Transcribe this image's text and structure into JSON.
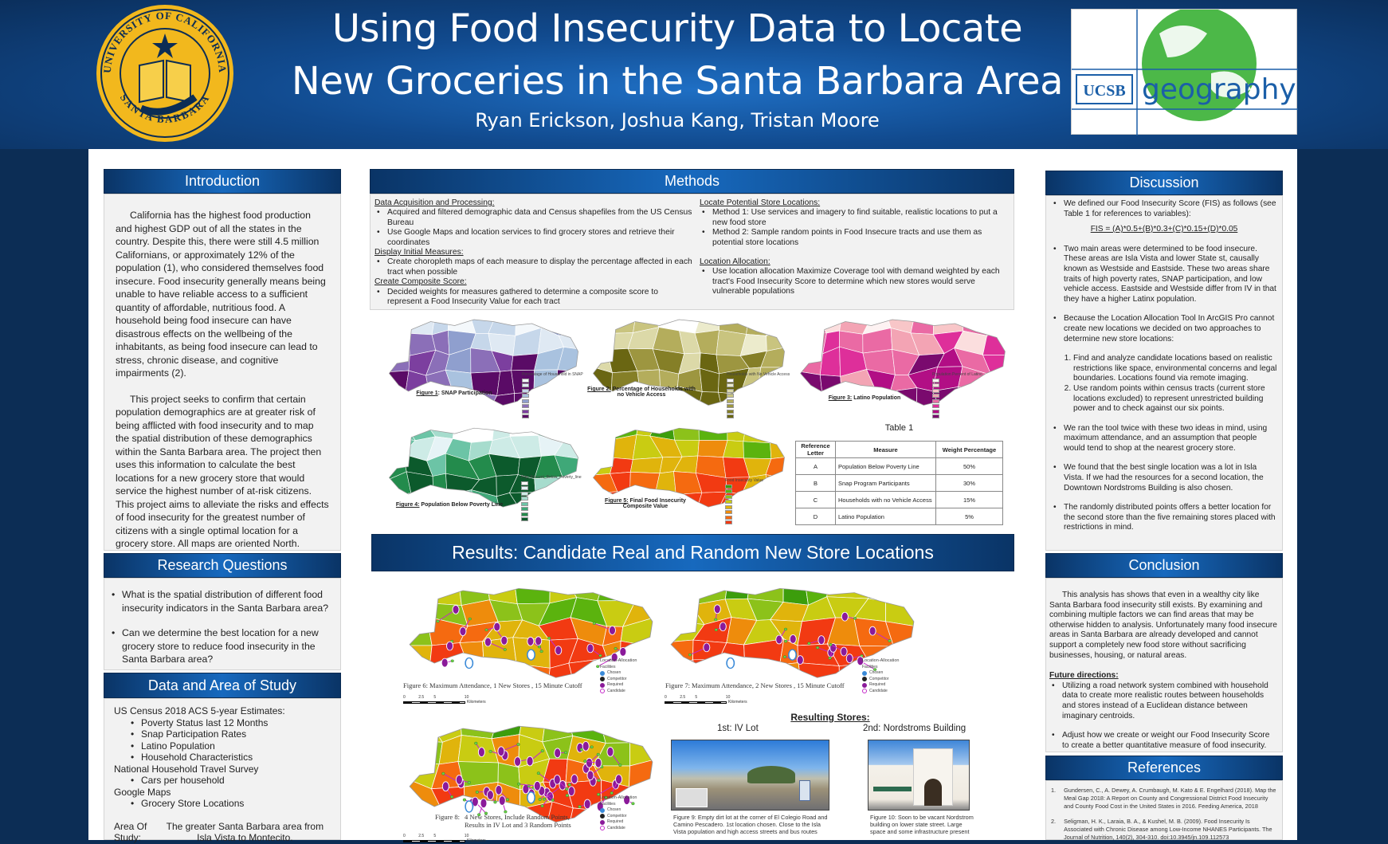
{
  "header": {
    "title_line1": "Using Food Insecurity Data to Locate",
    "title_line2": "New Groceries in the Santa Barbara Area",
    "authors": "Ryan Erickson, Joshua Kang, Tristan Moore",
    "seal_text_top": "UNIVERSITY OF CALIFORNIA",
    "seal_text_bottom": "SANTA BARBARA",
    "seal_motto": "LET THERE BE LIGHT",
    "logo_ucsb": "UCSB",
    "logo_geography": "geography"
  },
  "colors": {
    "header_blue": "#1769be",
    "navy": "#0a3466",
    "panel_gray": "#f2f2f2",
    "seal_gold": "#f2b81d",
    "logo_green": "#4cb848",
    "logo_blue": "#1b5fa8",
    "point_purple": "#8b1a9a"
  },
  "introduction": {
    "heading": "Introduction",
    "p1": "California has the highest food production and highest GDP out of all the states in the country. Despite this, there were still 4.5 million Californians, or approximately 12% of the population (1), who considered themselves food insecure. Food insecurity generally means being unable to have reliable access to a sufficient quantity of affordable, nutritious food. A household being food insecure can have disastrous effects on the wellbeing of the inhabitants, as being food insecure can lead to stress, chronic disease, and cognitive impairments (2).",
    "p2": "This project seeks to confirm that certain population demographics are at greater risk of being afflicted with food insecurity and to map the spatial distribution of these demographics within the Santa Barbara area. The project then uses this information to calculate the best locations for a new grocery store that would service the highest number of at-risk citizens. This project aims to alleviate the risks and effects of food insecurity for the greatest number of citizens with a single optimal location for a grocery store. All maps are oriented North."
  },
  "research_questions": {
    "heading": "Research Questions",
    "items": [
      "What is the spatial distribution of different food insecurity indicators in the Santa Barbara area?",
      "Can we determine the best location for a new grocery store to reduce food insecurity in the Santa Barbara area?"
    ]
  },
  "data_area": {
    "heading": "Data and Area of Study",
    "source1": "US Census 2018 ACS 5-year Estimates:",
    "source1_items": [
      "Poverty Status last 12 Months",
      "Snap Participation Rates",
      "Latino Population",
      "Household Characteristics"
    ],
    "source2": "National Household Travel Survey",
    "source2_items": [
      "Cars per household"
    ],
    "source3": "Google Maps",
    "source3_items": [
      "Grocery Store Locations"
    ],
    "area_label": "Area Of Study:",
    "area_text": "The greater Santa Barbara area from Isla Vista to Montecito."
  },
  "methods": {
    "heading": "Methods",
    "left": [
      {
        "title": "Data Acquisition and Processing:",
        "items": [
          "Acquired and filtered demographic data and Census shapefiles from the US Census Bureau",
          "Use Google Maps and location services to find grocery stores and retrieve their coordinates"
        ]
      },
      {
        "title": "Display Initial Measures:",
        "items": [
          "Create choropleth maps of each measure to display the percentage affected in each tract when possible"
        ]
      },
      {
        "title": "Create Composite Score:",
        "items": [
          "Decided weights for measures gathered to determine a composite score to represent a Food Insecurity Value for each tract"
        ]
      }
    ],
    "right": [
      {
        "title": "Locate Potential Store Locations:",
        "items": [
          "Method 1: Use services and imagery to find suitable, realistic locations to put a new food store",
          "Method 2: Sample random points in Food Insecure tracts and use them as potential store locations"
        ]
      },
      {
        "title": "Location Allocation:",
        "items": [
          "Use location allocation Maximize Coverage tool with demand weighted by each tract's Food Insecurity Score to determine which new stores would serve vulnerable populations"
        ]
      }
    ]
  },
  "figures": [
    {
      "label": "Figure 1",
      "text": ": SNAP Participation",
      "legend_title": "Percentage of Household in SNAP",
      "palette": [
        "#f4f8fb",
        "#dfe9f3",
        "#c6d7ea",
        "#a9c2df",
        "#8f9fce",
        "#8b6fb8",
        "#7c3f9f",
        "#5a0b66"
      ]
    },
    {
      "label": "Figure 2:",
      "text": " Percentage of Households with no Vehicle Access",
      "legend_title": "Households with No Vehicle Access",
      "palette": [
        "#ffffff",
        "#ecebcc",
        "#dcd9a8",
        "#c9c47f",
        "#b4ad5c",
        "#9d9640",
        "#857f27",
        "#6a6612"
      ]
    },
    {
      "label": "Figure 3:",
      "text": " Latino Population",
      "legend_title": "Population Percent of Latino",
      "palette": [
        "#fdf2f2",
        "#fbdede",
        "#f8c6c8",
        "#f3a4b4",
        "#ea6aa4",
        "#de2f9a",
        "#b20e85",
        "#7a0a6e"
      ]
    },
    {
      "label": "Figure 4:",
      "text": " Population Below Poverty Line",
      "legend_title": "Pop_Percent_Below_Poverty_line",
      "palette": [
        "#ffffff",
        "#e6f3f6",
        "#cdebe6",
        "#a6dccd",
        "#6cc4a6",
        "#3fa878",
        "#238b4c",
        "#0c5a2c"
      ]
    },
    {
      "label": "Figure 5:",
      "text": " Final Food Insecurity Composite Value",
      "legend_title": "Food Insecurity Value",
      "palette": [
        "#3c9d0c",
        "#5bb30e",
        "#8cc21a",
        "#c9cc12",
        "#e0b40c",
        "#ee8c0c",
        "#f56a10",
        "#f23a12"
      ]
    }
  ],
  "table1": {
    "title": "Table 1",
    "headers": [
      "Reference Letter",
      "Measure",
      "Weight Percentage"
    ],
    "rows": [
      [
        "A",
        "Population Below Poverty Line",
        "50%"
      ],
      [
        "B",
        "Snap Program Participants",
        "30%"
      ],
      [
        "C",
        "Households with no Vehicle Access",
        "15%"
      ],
      [
        "D",
        "Latino Population",
        "5%"
      ]
    ]
  },
  "results": {
    "heading": "Results: Candidate Real and Random New Store Locations",
    "fig6_caption": "Figure 6: Maximum Attendance, 1 New Stores , 15 Minute Cutoff",
    "fig7_caption": "Figure 7: Maximum Attendance, 2 New Stores , 15 Minute Cutoff",
    "fig8_label": "Figure 8:",
    "fig8_caption": "4 New Stores, Include Random Points, Results in IV Lot and 3 Random Points",
    "legend_title": "Location-Allocation",
    "legend_sub": "Facilities",
    "legend_items": [
      "Chosen",
      "Competitor",
      "Required",
      "Candidate"
    ],
    "scale_ticks": [
      "0",
      "2.5",
      "5",
      "10"
    ],
    "scale_unit": "Kilometers",
    "resulting_title": "Resulting Stores:",
    "first": "1st:  IV Lot",
    "second": "2nd: Nordstroms Building",
    "fig9_caption": "Figure 9: Empty dirt lot at the corner of El Colegio Road and Camino Pescadero. 1st location chosen. Close to the Isla Vista population and high access streets and bus routes",
    "fig10_caption": "Figure 10: Soon to be vacant Nordstrom building on lower state street. Large space and some infrastructure present"
  },
  "discussion": {
    "heading": "Discussion",
    "b1": "We defined our Food Insecurity Score (FIS) as follows (see Table 1 for references to variables):",
    "formula": "FIS = (A)*0.5+(B)*0.3+(C)*0.15+(D)*0.05",
    "b2": "Two main areas were determined to be food insecure. These areas are Isla Vista and lower State st, causally known as Westside and Eastside. These two areas share traits of high poverty rates, SNAP participation, and low vehicle access. Eastside and Westside differ from IV in that they have a higher Latinx population.",
    "b3": "Because the Location Allocation Tool In ArcGIS Pro cannot create new locations we decided on two approaches to determine new store locations:",
    "numbered": [
      "Find and analyze candidate locations based on realistic restrictions like space, environmental concerns and legal boundaries. Locations found via remote imaging.",
      "Use random points within census tracts (current store locations excluded) to represent unrestricted building power and to check against our six points."
    ],
    "b4": "We ran the tool twice with these two ideas in mind, using maximum attendance, and an assumption that people would tend to shop at the nearest grocery store.",
    "b5": "We found that the best single location was a lot in Isla Vista. If we had the resources for a second location, the Downtown Nordstroms Building is also chosen.",
    "b6": "The randomly distributed points offers a better location for the second store than the five remaining stores placed with restrictions in mind."
  },
  "conclusion": {
    "heading": "Conclusion",
    "p": "This analysis has shows that even in a wealthy city like Santa Barbara food insecurity still exists. By examining and combining multiple factors we can find areas that may be otherwise hidden to analysis. Unfortunately many food insecure areas in Santa Barbara are already developed and cannot support a completely new food store without sacrificing businesses, housing, or natural areas.",
    "future_title": "Future directions:",
    "future": [
      "Utilizing a road network system combined with household data to create more realistic routes between households and stores instead of a Euclidean distance between imaginary centroids.",
      "Adjust how we create or weight our Food Insecurity Score to create a better quantitative measure of food insecurity."
    ]
  },
  "references": {
    "heading": "References",
    "items": [
      {
        "n": "1.",
        "text": "Gundersen, C., A. Dewey, A. Crumbaugh, M. Kato & E. Engelhard (2018). Map the Meal Gap 2018: A Report on County and Congressional District Food Insecurity and County Food Cost in the United States in 2016. Feeding America, 2018"
      },
      {
        "n": "2.",
        "text": "Seligman, H. K., Laraia, B. A., & Kushel, M. B. (2009). Food Insecurity Is Associated with Chronic Disease among Low-Income NHANES Participants. The Journal of Nutrition, 140(2), 304-310. doi:10.3945/jn.109.112573"
      }
    ]
  }
}
